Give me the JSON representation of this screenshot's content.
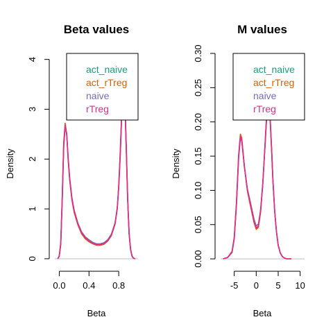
{
  "chart_data": [
    {
      "type": "line",
      "title": "Beta values",
      "xlabel": "Beta",
      "ylabel": "Density",
      "xlim": [
        -0.06,
        1.06
      ],
      "ylim": [
        -0.14,
        4.12
      ],
      "x_ticks": [
        0.0,
        0.4,
        0.8
      ],
      "x_tick_labels": [
        "0.0",
        "0.4",
        "0.8"
      ],
      "y_ticks": [
        0,
        1,
        2,
        3,
        4
      ],
      "y_tick_labels": [
        "0",
        "1",
        "2",
        "3",
        "4"
      ],
      "legend": {
        "placement": "top-right",
        "entries": [
          "act_naive",
          "act_rTreg",
          "naive",
          "rTreg"
        ]
      },
      "series": [
        {
          "name": "act_naive",
          "color": "#1B9E77",
          "x": [
            -0.02,
            0.0,
            0.02,
            0.04,
            0.06,
            0.08,
            0.1,
            0.12,
            0.14,
            0.17,
            0.2,
            0.25,
            0.3,
            0.35,
            0.4,
            0.45,
            0.5,
            0.55,
            0.6,
            0.65,
            0.7,
            0.75,
            0.78,
            0.8,
            0.82,
            0.84,
            0.86,
            0.88,
            0.9,
            0.92,
            0.94,
            0.96,
            0.98,
            1.0,
            1.02
          ],
          "y": [
            0.0,
            0.05,
            0.3,
            1.2,
            2.3,
            2.7,
            2.5,
            2.0,
            1.6,
            1.2,
            0.95,
            0.7,
            0.52,
            0.42,
            0.36,
            0.31,
            0.28,
            0.28,
            0.3,
            0.36,
            0.47,
            0.7,
            1.0,
            1.45,
            2.1,
            2.9,
            3.4,
            3.3,
            2.3,
            1.2,
            0.5,
            0.18,
            0.05,
            0.01,
            0.0
          ]
        },
        {
          "name": "act_rTreg",
          "color": "#D95F02",
          "x": [
            -0.02,
            0.0,
            0.02,
            0.04,
            0.06,
            0.08,
            0.1,
            0.12,
            0.14,
            0.17,
            0.2,
            0.25,
            0.3,
            0.35,
            0.4,
            0.45,
            0.5,
            0.55,
            0.6,
            0.65,
            0.7,
            0.75,
            0.78,
            0.8,
            0.82,
            0.84,
            0.86,
            0.88,
            0.9,
            0.92,
            0.94,
            0.96,
            0.98,
            1.0,
            1.02
          ],
          "y": [
            0.0,
            0.06,
            0.32,
            1.25,
            2.35,
            2.72,
            2.48,
            1.97,
            1.58,
            1.18,
            0.93,
            0.68,
            0.5,
            0.4,
            0.34,
            0.3,
            0.27,
            0.27,
            0.29,
            0.35,
            0.46,
            0.69,
            1.0,
            1.48,
            2.15,
            2.95,
            3.45,
            3.35,
            2.35,
            1.22,
            0.52,
            0.19,
            0.05,
            0.01,
            0.0
          ]
        },
        {
          "name": "naive",
          "color": "#7570B3",
          "x": [
            -0.02,
            0.0,
            0.02,
            0.04,
            0.06,
            0.08,
            0.1,
            0.12,
            0.14,
            0.17,
            0.2,
            0.25,
            0.3,
            0.35,
            0.4,
            0.45,
            0.5,
            0.55,
            0.6,
            0.65,
            0.7,
            0.75,
            0.78,
            0.8,
            0.82,
            0.84,
            0.86,
            0.88,
            0.9,
            0.92,
            0.94,
            0.96,
            0.98,
            1.0,
            1.02
          ],
          "y": [
            0.0,
            0.05,
            0.28,
            1.15,
            2.25,
            2.65,
            2.52,
            2.03,
            1.63,
            1.23,
            0.98,
            0.72,
            0.54,
            0.44,
            0.38,
            0.33,
            0.3,
            0.3,
            0.32,
            0.38,
            0.49,
            0.72,
            1.02,
            1.42,
            2.05,
            2.85,
            3.35,
            3.25,
            2.25,
            1.18,
            0.48,
            0.17,
            0.04,
            0.01,
            0.0
          ]
        },
        {
          "name": "rTreg",
          "color": "#E7298A",
          "x": [
            -0.02,
            0.0,
            0.02,
            0.04,
            0.06,
            0.08,
            0.1,
            0.12,
            0.14,
            0.17,
            0.2,
            0.25,
            0.3,
            0.35,
            0.4,
            0.45,
            0.5,
            0.55,
            0.6,
            0.65,
            0.7,
            0.75,
            0.78,
            0.8,
            0.82,
            0.84,
            0.86,
            0.88,
            0.9,
            0.92,
            0.94,
            0.96,
            0.98,
            1.0,
            1.02
          ],
          "y": [
            0.0,
            0.05,
            0.3,
            1.2,
            2.28,
            2.68,
            2.5,
            2.0,
            1.6,
            1.21,
            0.96,
            0.7,
            0.52,
            0.42,
            0.36,
            0.31,
            0.28,
            0.28,
            0.3,
            0.36,
            0.47,
            0.7,
            1.01,
            1.44,
            2.08,
            2.88,
            3.38,
            3.28,
            2.28,
            1.2,
            0.5,
            0.18,
            0.05,
            0.01,
            0.0
          ]
        }
      ]
    },
    {
      "type": "line",
      "title": "M values",
      "xlabel": "Beta",
      "ylabel": "Density",
      "xlim": [
        -8.1,
        11.0
      ],
      "ylim": [
        -0.01,
        0.3
      ],
      "x_ticks": [
        -5,
        0,
        5,
        10
      ],
      "x_tick_labels": [
        "-5",
        "0",
        "5",
        "10"
      ],
      "y_ticks": [
        0.0,
        0.05,
        0.1,
        0.15,
        0.2,
        0.25,
        0.3
      ],
      "y_tick_labels": [
        "0.00",
        "0.05",
        "0.10",
        "0.15",
        "0.20",
        "0.25",
        "0.30"
      ],
      "legend": {
        "placement": "top-right",
        "entries": [
          "act_naive",
          "act_rTreg",
          "naive",
          "rTreg"
        ]
      },
      "series": [
        {
          "name": "act_naive",
          "color": "#1B9E77",
          "x": [
            -7.5,
            -6.5,
            -5.5,
            -5.0,
            -4.5,
            -4.0,
            -3.6,
            -3.3,
            -3.0,
            -2.7,
            -2.4,
            -2.0,
            -1.5,
            -1.0,
            -0.5,
            0.0,
            0.5,
            1.0,
            1.5,
            2.0,
            2.3,
            2.6,
            2.9,
            3.2,
            3.5,
            3.8,
            4.2,
            4.6,
            5.0,
            5.5,
            6.0,
            6.5,
            7.0,
            8.0
          ],
          "y": [
            0.0,
            0.002,
            0.01,
            0.03,
            0.08,
            0.15,
            0.18,
            0.175,
            0.155,
            0.135,
            0.12,
            0.1,
            0.085,
            0.07,
            0.055,
            0.045,
            0.048,
            0.07,
            0.11,
            0.165,
            0.2,
            0.225,
            0.225,
            0.2,
            0.16,
            0.115,
            0.07,
            0.04,
            0.02,
            0.008,
            0.003,
            0.001,
            0.0,
            0.0
          ]
        },
        {
          "name": "act_rTreg",
          "color": "#D95F02",
          "x": [
            -7.5,
            -6.5,
            -5.5,
            -5.0,
            -4.5,
            -4.0,
            -3.6,
            -3.3,
            -3.0,
            -2.7,
            -2.4,
            -2.0,
            -1.5,
            -1.0,
            -0.5,
            0.0,
            0.5,
            1.0,
            1.5,
            2.0,
            2.3,
            2.6,
            2.9,
            3.2,
            3.5,
            3.8,
            4.2,
            4.6,
            5.0,
            5.5,
            6.0,
            6.5,
            7.0,
            8.0
          ],
          "y": [
            0.0,
            0.002,
            0.011,
            0.032,
            0.082,
            0.152,
            0.182,
            0.177,
            0.157,
            0.136,
            0.12,
            0.099,
            0.083,
            0.068,
            0.053,
            0.043,
            0.046,
            0.068,
            0.11,
            0.167,
            0.203,
            0.228,
            0.228,
            0.203,
            0.162,
            0.116,
            0.07,
            0.04,
            0.02,
            0.008,
            0.003,
            0.001,
            0.0,
            0.0
          ]
        },
        {
          "name": "naive",
          "color": "#7570B3",
          "x": [
            -7.5,
            -6.5,
            -5.5,
            -5.0,
            -4.5,
            -4.0,
            -3.6,
            -3.3,
            -3.0,
            -2.7,
            -2.4,
            -2.0,
            -1.5,
            -1.0,
            -0.5,
            0.0,
            0.5,
            1.0,
            1.5,
            2.0,
            2.3,
            2.6,
            2.9,
            3.2,
            3.5,
            3.8,
            4.2,
            4.6,
            5.0,
            5.5,
            6.0,
            6.5,
            7.0,
            8.0
          ],
          "y": [
            0.0,
            0.002,
            0.009,
            0.029,
            0.078,
            0.147,
            0.176,
            0.172,
            0.154,
            0.135,
            0.121,
            0.102,
            0.088,
            0.073,
            0.058,
            0.048,
            0.051,
            0.072,
            0.111,
            0.163,
            0.197,
            0.221,
            0.222,
            0.198,
            0.158,
            0.114,
            0.069,
            0.04,
            0.02,
            0.008,
            0.003,
            0.001,
            0.0,
            0.0
          ]
        },
        {
          "name": "rTreg",
          "color": "#E7298A",
          "x": [
            -7.5,
            -6.5,
            -5.5,
            -5.0,
            -4.5,
            -4.0,
            -3.6,
            -3.3,
            -3.0,
            -2.7,
            -2.4,
            -2.0,
            -1.5,
            -1.0,
            -0.5,
            0.0,
            0.5,
            1.0,
            1.5,
            2.0,
            2.3,
            2.6,
            2.9,
            3.2,
            3.5,
            3.8,
            4.2,
            4.6,
            5.0,
            5.5,
            6.0,
            6.5,
            7.0,
            8.0
          ],
          "y": [
            0.0,
            0.002,
            0.01,
            0.03,
            0.08,
            0.149,
            0.179,
            0.174,
            0.155,
            0.135,
            0.12,
            0.1,
            0.085,
            0.07,
            0.055,
            0.045,
            0.048,
            0.07,
            0.11,
            0.165,
            0.2,
            0.224,
            0.224,
            0.2,
            0.16,
            0.115,
            0.07,
            0.04,
            0.02,
            0.008,
            0.003,
            0.001,
            0.0,
            0.0
          ]
        }
      ]
    }
  ]
}
